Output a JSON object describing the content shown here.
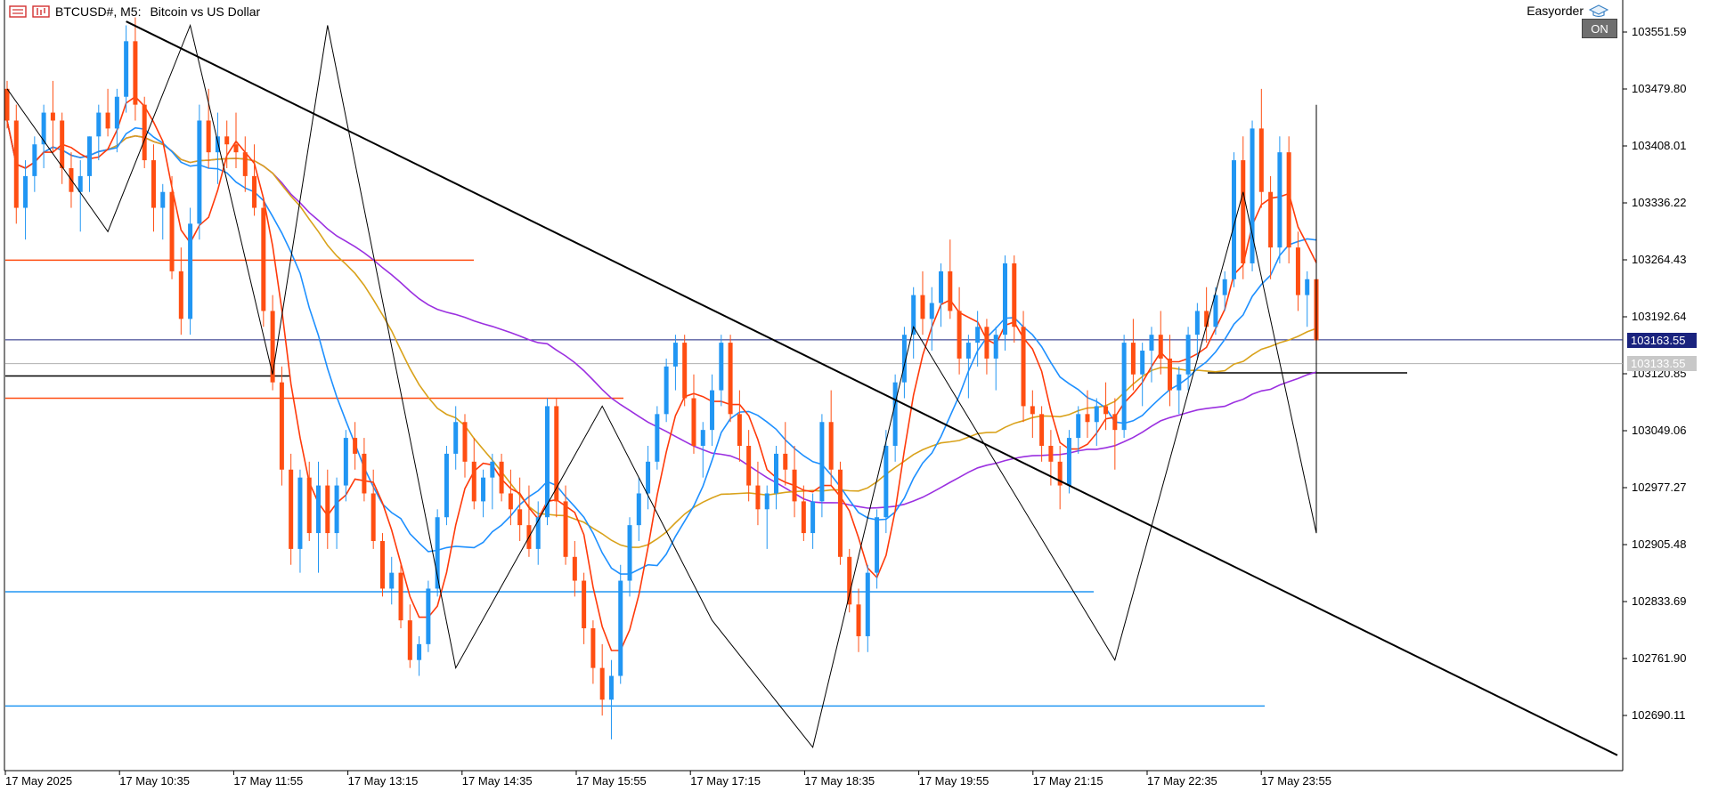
{
  "header": {
    "symbol": "BTCUSD#, M5:",
    "description": "Bitcoin vs US Dollar",
    "easyorder_label": "Easyorder",
    "on_badge": "ON"
  },
  "colors": {
    "bull": "#2196f3",
    "bear": "#ff4e12",
    "ma_red": "#ff3a0a",
    "ma_blue": "#1e90ff",
    "ma_gold": "#d9a21b",
    "ma_purple": "#9b30e0",
    "trend": "#000000",
    "ask_line": "#1a237e",
    "bid_line": "#b0b0b0"
  },
  "price_axis": {
    "labels": [
      "103551.59",
      "103479.80",
      "103408.01",
      "103336.22",
      "103264.43",
      "103192.64",
      "103120.85",
      "103049.06",
      "102977.27",
      "102905.48",
      "102833.69",
      "102761.90",
      "102690.11"
    ],
    "current_price_tag": "103163.55",
    "bid_price_tag": "103133.55"
  },
  "time_axis": {
    "labels": [
      "17 May 2025",
      "17 May 10:35",
      "17 May 11:55",
      "17 May 13:15",
      "17 May 14:35",
      "17 May 15:55",
      "17 May 17:15",
      "17 May 18:35",
      "17 May 19:55",
      "17 May 21:15",
      "17 May 22:35",
      "17 May 23:55"
    ]
  },
  "chart_data": {
    "type": "candlestick",
    "symbol": "BTCUSD#",
    "timeframe": "M5",
    "ylim": [
      102640,
      103570
    ],
    "candles": [
      [
        103480,
        103490,
        103430,
        103440
      ],
      [
        103440,
        103460,
        103310,
        103330
      ],
      [
        103330,
        103390,
        103290,
        103370
      ],
      [
        103370,
        103420,
        103350,
        103410
      ],
      [
        103410,
        103460,
        103380,
        103450
      ],
      [
        103450,
        103490,
        103400,
        103440
      ],
      [
        103440,
        103450,
        103360,
        103380
      ],
      [
        103380,
        103400,
        103330,
        103350
      ],
      [
        103350,
        103390,
        103300,
        103370
      ],
      [
        103370,
        103420,
        103350,
        103420
      ],
      [
        103420,
        103460,
        103390,
        103450
      ],
      [
        103450,
        103480,
        103420,
        103430
      ],
      [
        103430,
        103480,
        103400,
        103470
      ],
      [
        103470,
        103560,
        103450,
        103540
      ],
      [
        103540,
        103570,
        103440,
        103460
      ],
      [
        103460,
        103470,
        103380,
        103390
      ],
      [
        103390,
        103410,
        103300,
        103330
      ],
      [
        103330,
        103360,
        103290,
        103350
      ],
      [
        103350,
        103370,
        103240,
        103250
      ],
      [
        103250,
        103280,
        103170,
        103190
      ],
      [
        103190,
        103330,
        103170,
        103310
      ],
      [
        103310,
        103460,
        103290,
        103440
      ],
      [
        103440,
        103480,
        103380,
        103400
      ],
      [
        103400,
        103450,
        103360,
        103420
      ],
      [
        103420,
        103440,
        103380,
        103410
      ],
      [
        103410,
        103450,
        103380,
        103400
      ],
      [
        103400,
        103420,
        103350,
        103370
      ],
      [
        103370,
        103410,
        103320,
        103330
      ],
      [
        103330,
        103340,
        103180,
        103200
      ],
      [
        103200,
        103220,
        103100,
        103110
      ],
      [
        103110,
        103130,
        102980,
        103000
      ],
      [
        103000,
        103020,
        102880,
        102900
      ],
      [
        102900,
        103000,
        102870,
        102990
      ],
      [
        102990,
        103010,
        102910,
        102920
      ],
      [
        102920,
        103010,
        102870,
        102980
      ],
      [
        102980,
        103000,
        102900,
        102920
      ],
      [
        102920,
        102990,
        102900,
        102980
      ],
      [
        102980,
        103050,
        102960,
        103040
      ],
      [
        103040,
        103060,
        103000,
        103020
      ],
      [
        103020,
        103040,
        102960,
        102970
      ],
      [
        102970,
        103000,
        102900,
        102910
      ],
      [
        102910,
        102920,
        102840,
        102850
      ],
      [
        102850,
        102890,
        102830,
        102870
      ],
      [
        102870,
        102880,
        102800,
        102810
      ],
      [
        102810,
        102830,
        102750,
        102760
      ],
      [
        102760,
        102790,
        102740,
        102780
      ],
      [
        102780,
        102860,
        102770,
        102850
      ],
      [
        102850,
        102950,
        102840,
        102940
      ],
      [
        102940,
        103030,
        102930,
        103020
      ],
      [
        103020,
        103080,
        103000,
        103060
      ],
      [
        103060,
        103070,
        102990,
        103010
      ],
      [
        103010,
        103040,
        102950,
        102960
      ],
      [
        102960,
        103000,
        102940,
        102990
      ],
      [
        102990,
        103020,
        102950,
        103010
      ],
      [
        103010,
        103020,
        102960,
        102970
      ],
      [
        102970,
        103000,
        102930,
        102950
      ],
      [
        102950,
        102990,
        102910,
        102930
      ],
      [
        102930,
        102980,
        102890,
        102900
      ],
      [
        102900,
        102960,
        102880,
        102940
      ],
      [
        102940,
        103090,
        102930,
        103080
      ],
      [
        103080,
        103090,
        102940,
        102960
      ],
      [
        102960,
        102980,
        102880,
        102890
      ],
      [
        102890,
        102910,
        102840,
        102860
      ],
      [
        102860,
        102870,
        102780,
        102800
      ],
      [
        102800,
        102810,
        102730,
        102750
      ],
      [
        102750,
        102780,
        102690,
        102710
      ],
      [
        102710,
        102760,
        102660,
        102740
      ],
      [
        102740,
        102880,
        102730,
        102860
      ],
      [
        102860,
        102940,
        102840,
        102930
      ],
      [
        102930,
        102990,
        102910,
        102970
      ],
      [
        102970,
        103030,
        102950,
        103010
      ],
      [
        103010,
        103080,
        103000,
        103070
      ],
      [
        103070,
        103140,
        103060,
        103130
      ],
      [
        103130,
        103170,
        103100,
        103160
      ],
      [
        103160,
        103170,
        103080,
        103090
      ],
      [
        103090,
        103120,
        103020,
        103030
      ],
      [
        103030,
        103060,
        102990,
        103050
      ],
      [
        103050,
        103120,
        103030,
        103100
      ],
      [
        103100,
        103170,
        103080,
        103160
      ],
      [
        103160,
        103170,
        103060,
        103070
      ],
      [
        103070,
        103100,
        103010,
        103030
      ],
      [
        103030,
        103050,
        102960,
        102980
      ],
      [
        102980,
        103010,
        102930,
        102950
      ],
      [
        102950,
        102980,
        102900,
        102970
      ],
      [
        102970,
        103030,
        102950,
        103020
      ],
      [
        103020,
        103060,
        102980,
        103000
      ],
      [
        103000,
        103030,
        102940,
        102960
      ],
      [
        102960,
        102980,
        102910,
        102920
      ],
      [
        102920,
        102970,
        102900,
        102960
      ],
      [
        102960,
        103070,
        102940,
        103060
      ],
      [
        103060,
        103100,
        102980,
        103000
      ],
      [
        103000,
        103010,
        102880,
        102890
      ],
      [
        102890,
        102900,
        102820,
        102830
      ],
      [
        102830,
        102850,
        102770,
        102790
      ],
      [
        102790,
        102880,
        102770,
        102870
      ],
      [
        102870,
        102950,
        102850,
        102940
      ],
      [
        102940,
        103050,
        102920,
        103030
      ],
      [
        103030,
        103120,
        103010,
        103110
      ],
      [
        103110,
        103180,
        103090,
        103170
      ],
      [
        103170,
        103230,
        103140,
        103220
      ],
      [
        103220,
        103250,
        103170,
        103190
      ],
      [
        103190,
        103230,
        103150,
        103210
      ],
      [
        103210,
        103260,
        103180,
        103250
      ],
      [
        103250,
        103290,
        103190,
        103200
      ],
      [
        103200,
        103230,
        103120,
        103140
      ],
      [
        103140,
        103170,
        103090,
        103160
      ],
      [
        103160,
        103200,
        103130,
        103180
      ],
      [
        103180,
        103190,
        103120,
        103140
      ],
      [
        103140,
        103180,
        103100,
        103170
      ],
      [
        103170,
        103270,
        103150,
        103260
      ],
      [
        103260,
        103270,
        103160,
        103180
      ],
      [
        103180,
        103200,
        103060,
        103080
      ],
      [
        103080,
        103100,
        103040,
        103070
      ],
      [
        103070,
        103080,
        103010,
        103030
      ],
      [
        103030,
        103050,
        102980,
        103010
      ],
      [
        103010,
        103030,
        102950,
        102980
      ],
      [
        102980,
        103050,
        102970,
        103040
      ],
      [
        103040,
        103080,
        103020,
        103070
      ],
      [
        103070,
        103100,
        103040,
        103060
      ],
      [
        103060,
        103090,
        103030,
        103080
      ],
      [
        103080,
        103110,
        103050,
        103070
      ],
      [
        103070,
        103090,
        103000,
        103050
      ],
      [
        103050,
        103170,
        103040,
        103160
      ],
      [
        103160,
        103190,
        103100,
        103120
      ],
      [
        103120,
        103160,
        103080,
        103150
      ],
      [
        103150,
        103180,
        103110,
        103170
      ],
      [
        103170,
        103200,
        103120,
        103140
      ],
      [
        103140,
        103170,
        103080,
        103100
      ],
      [
        103100,
        103130,
        103070,
        103120
      ],
      [
        103120,
        103180,
        103100,
        103170
      ],
      [
        103170,
        103210,
        103140,
        103200
      ],
      [
        103200,
        103230,
        103160,
        103180
      ],
      [
        103180,
        103230,
        103170,
        103220
      ],
      [
        103220,
        103250,
        103200,
        103240
      ],
      [
        103240,
        103400,
        103230,
        103390
      ],
      [
        103390,
        103420,
        103240,
        103260
      ],
      [
        103260,
        103440,
        103250,
        103430
      ],
      [
        103430,
        103480,
        103330,
        103350
      ],
      [
        103350,
        103370,
        103240,
        103280
      ],
      [
        103280,
        103420,
        103260,
        103400
      ],
      [
        103400,
        103420,
        103260,
        103280
      ],
      [
        103280,
        103300,
        103200,
        103220
      ],
      [
        103220,
        103250,
        103180,
        103240
      ],
      [
        103240,
        103250,
        103150,
        103163
      ]
    ]
  }
}
